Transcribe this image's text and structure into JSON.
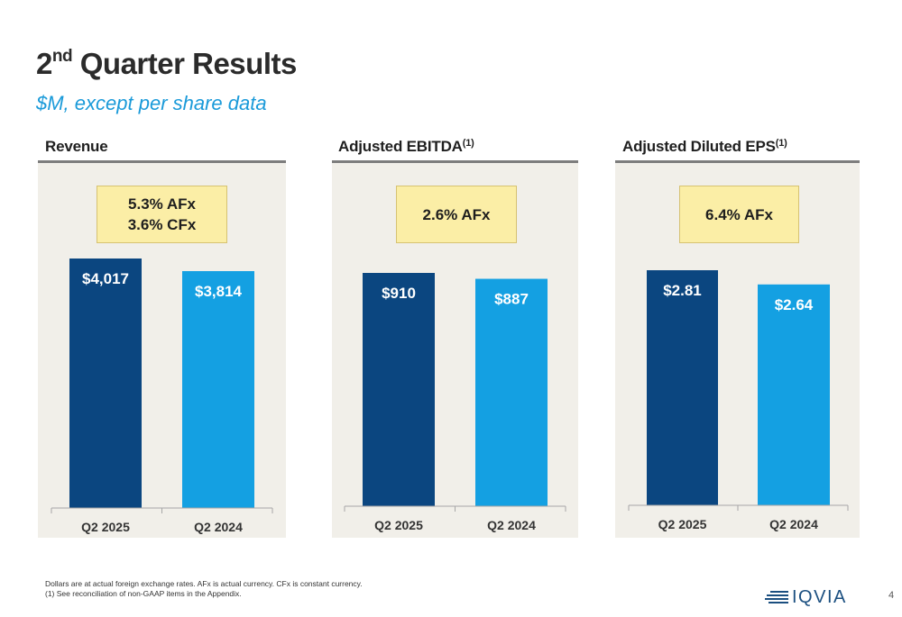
{
  "slide": {
    "title_main": "2",
    "title_sup": "nd",
    "title_rest": " Quarter Results",
    "subtitle": "$M, except per share data",
    "footnote_line1": "Dollars are at actual foreign exchange rates. AFx is actual currency. CFx is constant currency.",
    "footnote_line2": "(1)  See reconciliation of non-GAAP items in the Appendix.",
    "logo_text": "IQVIA",
    "page_number": "4"
  },
  "colors": {
    "dark_bar": "#0b4680",
    "light_bar": "#14a0e2",
    "panel_bg": "#f1efe9",
    "callout_bg": "#fbeea6",
    "subtitle": "#1a9ad9"
  },
  "chart_data": [
    {
      "type": "bar",
      "title": "Revenue",
      "title_sup": "",
      "categories": [
        "Q2 2025",
        "Q2 2024"
      ],
      "values": [
        4017,
        3814
      ],
      "value_labels": [
        "$4,017",
        "$3,814"
      ],
      "callout": [
        "5.3% AFx",
        "3.6% CFx"
      ]
    },
    {
      "type": "bar",
      "title": "Adjusted EBITDA",
      "title_sup": "(1)",
      "categories": [
        "Q2 2025",
        "Q2 2024"
      ],
      "values": [
        910,
        887
      ],
      "value_labels": [
        "$910",
        "$887"
      ],
      "callout": [
        "2.6% AFx"
      ]
    },
    {
      "type": "bar",
      "title": "Adjusted Diluted EPS",
      "title_sup": "(1)",
      "categories": [
        "Q2 2025",
        "Q2 2024"
      ],
      "values": [
        2.81,
        2.64
      ],
      "value_labels": [
        "$2.81",
        "$2.64"
      ],
      "callout": [
        "6.4% AFx"
      ]
    }
  ]
}
